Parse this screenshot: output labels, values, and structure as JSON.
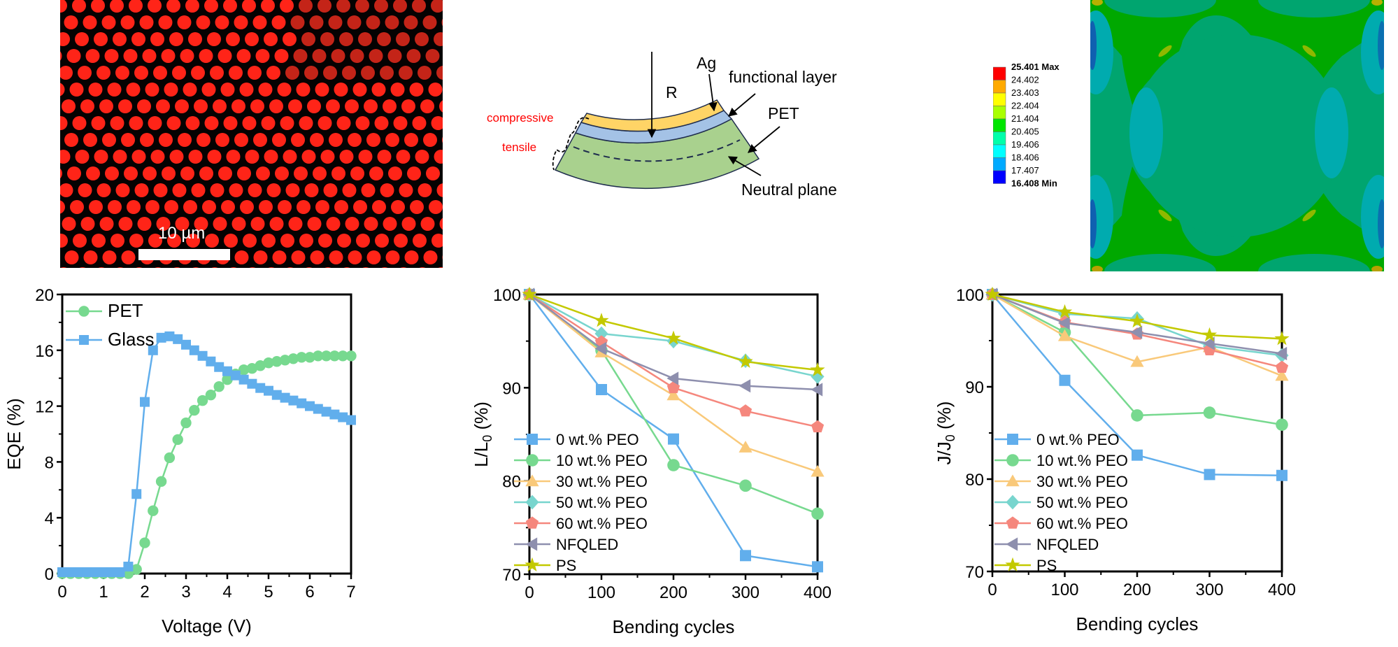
{
  "figure": {
    "micrograph": {
      "scale_bar_label": "10 µm"
    },
    "diagram": {
      "labels": {
        "radius": "R",
        "ag": "Ag",
        "functional_layer": "functional layer",
        "pet": "PET",
        "neutral_plane": "Neutral plane",
        "compressive": "compressive",
        "tensile": "tensile"
      },
      "colors": {
        "ag_layer": "#FFD466",
        "functional_layer": "#A4C2E6",
        "pet_layer": "#A9D18E",
        "stress_text": "#FF0000"
      }
    },
    "fem": {
      "legend": [
        {
          "label": "25.401 Max",
          "color": "#FF0000",
          "bold": true
        },
        {
          "label": "24.402",
          "color": "#FFAA00",
          "bold": false
        },
        {
          "label": "23.403",
          "color": "#FFFF00",
          "bold": false
        },
        {
          "label": "22.404",
          "color": "#AAFF00",
          "bold": false
        },
        {
          "label": "21.404",
          "color": "#00E600",
          "bold": false
        },
        {
          "label": "20.405",
          "color": "#00FFAA",
          "bold": false
        },
        {
          "label": "19.406",
          "color": "#00FFFF",
          "bold": false
        },
        {
          "label": "18.406",
          "color": "#00AAFF",
          "bold": false
        },
        {
          "label": "17.407",
          "color": "#0000FF",
          "bold": false
        },
        {
          "label": "16.408 Min",
          "color": "",
          "bold": true
        }
      ]
    }
  },
  "chart_data": [
    {
      "type": "line",
      "title": "",
      "xlabel": "Voltage (V)",
      "ylabel": "EQE (%)",
      "xlim": [
        0,
        7
      ],
      "ylim": [
        0,
        20
      ],
      "xticks": [
        0,
        1,
        2,
        3,
        4,
        5,
        6,
        7
      ],
      "yticks": [
        0,
        4,
        8,
        12,
        16,
        20
      ],
      "legend_position": "top-left",
      "series": [
        {
          "name": "PET",
          "marker": "circle",
          "color": "#77D98F",
          "x": [
            0,
            0.2,
            0.4,
            0.6,
            0.8,
            1.0,
            1.2,
            1.4,
            1.6,
            1.8,
            2.0,
            2.2,
            2.4,
            2.6,
            2.8,
            3.0,
            3.2,
            3.4,
            3.6,
            3.8,
            4.0,
            4.2,
            4.4,
            4.6,
            4.8,
            5.0,
            5.2,
            5.4,
            5.6,
            5.8,
            6.0,
            6.2,
            6.4,
            6.6,
            6.8,
            7.0
          ],
          "y": [
            0,
            0,
            0,
            0,
            0,
            0,
            0,
            0,
            0,
            0.3,
            2.2,
            4.5,
            6.6,
            8.3,
            9.6,
            10.8,
            11.7,
            12.4,
            12.8,
            13.4,
            13.9,
            14.3,
            14.6,
            14.7,
            14.9,
            15.1,
            15.2,
            15.3,
            15.4,
            15.5,
            15.5,
            15.6,
            15.6,
            15.6,
            15.6,
            15.6
          ]
        },
        {
          "name": "Glass",
          "marker": "square",
          "color": "#61AEEC",
          "x": [
            0,
            0.2,
            0.4,
            0.6,
            0.8,
            1.0,
            1.2,
            1.4,
            1.6,
            1.8,
            2.0,
            2.2,
            2.4,
            2.6,
            2.8,
            3.0,
            3.2,
            3.4,
            3.6,
            3.8,
            4.0,
            4.2,
            4.4,
            4.6,
            4.8,
            5.0,
            5.2,
            5.4,
            5.6,
            5.8,
            6.0,
            6.2,
            6.4,
            6.6,
            6.8,
            7.0
          ],
          "y": [
            0.1,
            0.1,
            0.1,
            0.1,
            0.1,
            0.1,
            0.1,
            0.1,
            0.5,
            5.7,
            12.3,
            16.0,
            16.9,
            17.0,
            16.8,
            16.4,
            16.0,
            15.6,
            15.2,
            14.8,
            14.5,
            14.2,
            13.9,
            13.6,
            13.3,
            13.1,
            12.8,
            12.6,
            12.4,
            12.2,
            12.0,
            11.8,
            11.6,
            11.4,
            11.2,
            11.0
          ]
        }
      ]
    },
    {
      "type": "line",
      "title": "",
      "xlabel": "Bending cycles",
      "ylabel": "L/L0 (%)",
      "ylabel_main": "L/L",
      "ylabel_sub": "0",
      "ylabel_tail": " (%)",
      "xlim": [
        0,
        400
      ],
      "ylim": [
        70,
        100
      ],
      "xticks": [
        0,
        100,
        200,
        300,
        400
      ],
      "yticks": [
        70,
        80,
        90,
        100
      ],
      "legend_position": "bottom-left",
      "x": [
        0,
        100,
        200,
        300,
        400
      ],
      "series": [
        {
          "name": "0 wt.% PEO",
          "marker": "square",
          "color": "#61AEEC",
          "values": [
            100,
            89.8,
            84.5,
            72.0,
            70.8
          ]
        },
        {
          "name": "10 wt.% PEO",
          "marker": "circle",
          "color": "#77D98F",
          "values": [
            100,
            94.0,
            81.7,
            79.5,
            76.5
          ]
        },
        {
          "name": "30 wt.% PEO",
          "marker": "triangle-up",
          "color": "#F9C97A",
          "values": [
            100,
            93.8,
            89.2,
            83.6,
            81.0
          ]
        },
        {
          "name": "50 wt.% PEO",
          "marker": "diamond",
          "color": "#78D5CE",
          "values": [
            100,
            95.8,
            95.0,
            92.9,
            91.2
          ]
        },
        {
          "name": "60 wt.% PEO",
          "marker": "pentagon",
          "color": "#F5877D",
          "values": [
            100,
            94.9,
            90.0,
            87.5,
            85.8
          ]
        },
        {
          "name": "NFQLED",
          "marker": "triangle-left",
          "color": "#8E8FAE",
          "values": [
            100,
            94.2,
            91.0,
            90.2,
            89.8
          ]
        },
        {
          "name": "PS",
          "marker": "star",
          "color": "#C3C900",
          "values": [
            100,
            97.2,
            95.3,
            92.8,
            91.9
          ]
        }
      ]
    },
    {
      "type": "line",
      "title": "",
      "xlabel": "Bending cycles",
      "ylabel": "J/J0 (%)",
      "ylabel_main": "J/J",
      "ylabel_sub": "0",
      "ylabel_tail": " (%)",
      "xlim": [
        0,
        400
      ],
      "ylim": [
        70,
        100
      ],
      "xticks": [
        0,
        100,
        200,
        300,
        400
      ],
      "yticks": [
        70,
        80,
        90,
        100
      ],
      "legend_position": "bottom-left",
      "x": [
        0,
        100,
        200,
        300,
        400
      ],
      "series": [
        {
          "name": "0 wt.% PEO",
          "marker": "square",
          "color": "#61AEEC",
          "values": [
            100,
            90.7,
            82.6,
            80.5,
            80.4
          ]
        },
        {
          "name": "10 wt.% PEO",
          "marker": "circle",
          "color": "#77D98F",
          "values": [
            100,
            95.9,
            86.9,
            87.2,
            85.9
          ]
        },
        {
          "name": "30 wt.% PEO",
          "marker": "triangle-up",
          "color": "#F9C97A",
          "values": [
            100,
            95.5,
            92.7,
            94.3,
            91.2
          ]
        },
        {
          "name": "50 wt.% PEO",
          "marker": "diamond",
          "color": "#78D5CE",
          "values": [
            100,
            97.9,
            97.4,
            94.4,
            93.4
          ]
        },
        {
          "name": "60 wt.% PEO",
          "marker": "pentagon",
          "color": "#F5877D",
          "values": [
            100,
            97.0,
            95.7,
            94.0,
            92.1
          ]
        },
        {
          "name": "NFQLED",
          "marker": "triangle-left",
          "color": "#8E8FAE",
          "values": [
            100,
            96.9,
            95.9,
            94.7,
            93.6
          ]
        },
        {
          "name": "PS",
          "marker": "star",
          "color": "#C3C900",
          "values": [
            100,
            98.1,
            97.1,
            95.6,
            95.2
          ]
        }
      ]
    }
  ]
}
